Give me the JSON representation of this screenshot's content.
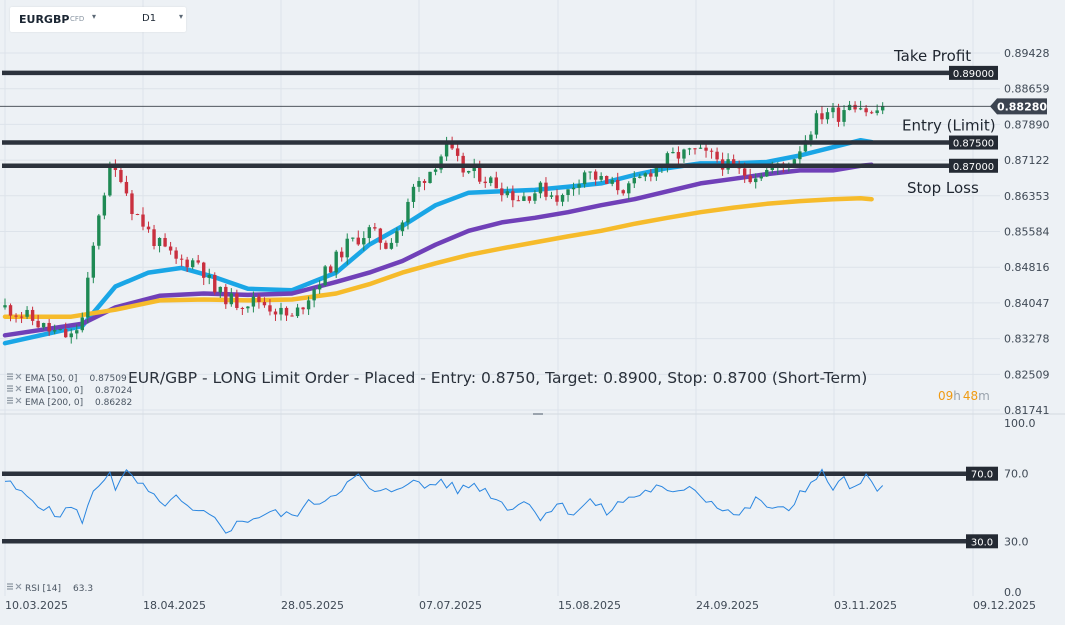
{
  "header": {
    "symbol": "EURGBP",
    "instrument_type": "CFD",
    "timeframe": "D1"
  },
  "title": "EUR/GBP - LONG Limit Order - Placed - Entry: 0.8750, Target: 0.8900, Stop: 0.8700 (Short-Term)",
  "countdown": {
    "hours": "09",
    "h_unit": "h",
    "minutes": "48",
    "m_unit": "m"
  },
  "colors": {
    "up": "#1f8a54",
    "down": "#c9303f",
    "ema50": "#1aa6e6",
    "ema100": "#7040b8",
    "ema200": "#f6bb2b",
    "rsi": "#2a86e0",
    "levels": "#2c323c"
  },
  "indicators": [
    {
      "label": "EMA [50, 0]",
      "value": "0.87509"
    },
    {
      "label": "EMA [100, 0]",
      "value": "0.87024"
    },
    {
      "label": "EMA [200, 0]",
      "value": "0.86282"
    }
  ],
  "rsi_legend": {
    "label": "RSI [14]",
    "value": "63.3"
  },
  "chart_data": [
    {
      "type": "candlestick",
      "title": "",
      "ylim": [
        0.81741,
        0.89428
      ],
      "y_ticks": [
        "0.89428",
        "0.88659",
        "0.87890",
        "0.87122",
        "0.86353",
        "0.85584",
        "0.84816",
        "0.84047",
        "0.83278",
        "0.82509",
        "0.81741"
      ],
      "x_ticks": [
        "10.03.2025",
        "18.04.2025",
        "28.05.2025",
        "07.07.2025",
        "15.08.2025",
        "24.09.2025",
        "03.11.2025",
        "09.12.2025"
      ],
      "current_price": "0.88280",
      "levels": [
        {
          "name": "Take Profit",
          "value": 0.89,
          "label": "0.89000"
        },
        {
          "name": "Entry (Limit)",
          "value": 0.875,
          "label": "0.87500"
        },
        {
          "name": "Stop Loss",
          "value": 0.87,
          "label": "0.87000"
        }
      ],
      "close_path": [
        [
          0,
          0.8395
        ],
        [
          4,
          0.8375
        ],
        [
          8,
          0.8345
        ],
        [
          12,
          0.833
        ],
        [
          14,
          0.837
        ],
        [
          17,
          0.86
        ],
        [
          19,
          0.869
        ],
        [
          21,
          0.868
        ],
        [
          23,
          0.861
        ],
        [
          27,
          0.854
        ],
        [
          31,
          0.8495
        ],
        [
          35,
          0.8495
        ],
        [
          38,
          0.843
        ],
        [
          42,
          0.8405
        ],
        [
          46,
          0.841
        ],
        [
          49,
          0.839
        ],
        [
          52,
          0.837
        ],
        [
          55,
          0.842
        ],
        [
          58,
          0.847
        ],
        [
          62,
          0.853
        ],
        [
          66,
          0.856
        ],
        [
          69,
          0.853
        ],
        [
          72,
          0.858
        ],
        [
          74,
          0.865
        ],
        [
          77,
          0.869
        ],
        [
          80,
          0.874
        ],
        [
          83,
          0.869
        ],
        [
          86,
          0.868
        ],
        [
          89,
          0.866
        ],
        [
          93,
          0.863
        ],
        [
          97,
          0.865
        ],
        [
          101,
          0.863
        ],
        [
          105,
          0.869
        ],
        [
          109,
          0.866
        ],
        [
          113,
          0.865
        ],
        [
          117,
          0.869
        ],
        [
          121,
          0.872
        ],
        [
          125,
          0.873
        ],
        [
          129,
          0.8715
        ],
        [
          132,
          0.869
        ],
        [
          135,
          0.868
        ],
        [
          138,
          0.869
        ],
        [
          141,
          0.87
        ],
        [
          143,
          0.872
        ],
        [
          145,
          0.876
        ],
        [
          147,
          0.88
        ],
        [
          149,
          0.882
        ],
        [
          151,
          0.881
        ],
        [
          153,
          0.884
        ],
        [
          155,
          0.883
        ],
        [
          157,
          0.881
        ],
        [
          159,
          0.8828
        ]
      ],
      "series": [
        {
          "name": "EMA [50, 0]",
          "points": [
            [
              0,
              0.8318
            ],
            [
              14,
              0.8355
            ],
            [
              20,
              0.844
            ],
            [
              26,
              0.847
            ],
            [
              32,
              0.848
            ],
            [
              38,
              0.846
            ],
            [
              44,
              0.8435
            ],
            [
              52,
              0.8432
            ],
            [
              60,
              0.847
            ],
            [
              66,
              0.853
            ],
            [
              72,
              0.857
            ],
            [
              78,
              0.8615
            ],
            [
              84,
              0.8642
            ],
            [
              90,
              0.8645
            ],
            [
              96,
              0.8648
            ],
            [
              102,
              0.8655
            ],
            [
              108,
              0.8662
            ],
            [
              114,
              0.868
            ],
            [
              120,
              0.8695
            ],
            [
              126,
              0.8705
            ],
            [
              132,
              0.8705
            ],
            [
              138,
              0.8708
            ],
            [
              144,
              0.8722
            ],
            [
              150,
              0.874
            ],
            [
              155,
              0.8755
            ],
            [
              157,
              0.8751
            ]
          ]
        },
        {
          "name": "EMA [100, 0]",
          "points": [
            [
              0,
              0.8335
            ],
            [
              14,
              0.836
            ],
            [
              20,
              0.8395
            ],
            [
              28,
              0.842
            ],
            [
              36,
              0.8425
            ],
            [
              44,
              0.8422
            ],
            [
              52,
              0.8425
            ],
            [
              60,
              0.845
            ],
            [
              66,
              0.847
            ],
            [
              72,
              0.8495
            ],
            [
              78,
              0.853
            ],
            [
              84,
              0.856
            ],
            [
              90,
              0.8578
            ],
            [
              96,
              0.8588
            ],
            [
              102,
              0.86
            ],
            [
              108,
              0.8615
            ],
            [
              114,
              0.8628
            ],
            [
              120,
              0.8645
            ],
            [
              126,
              0.8662
            ],
            [
              132,
              0.8672
            ],
            [
              138,
              0.8682
            ],
            [
              144,
              0.869
            ],
            [
              150,
              0.869
            ],
            [
              155,
              0.87
            ],
            [
              157,
              0.8702
            ]
          ]
        },
        {
          "name": "EMA [200, 0]",
          "points": [
            [
              0,
              0.8375
            ],
            [
              12,
              0.8375
            ],
            [
              20,
              0.839
            ],
            [
              28,
              0.841
            ],
            [
              36,
              0.8412
            ],
            [
              44,
              0.841
            ],
            [
              52,
              0.8412
            ],
            [
              60,
              0.8425
            ],
            [
              66,
              0.8445
            ],
            [
              72,
              0.847
            ],
            [
              78,
              0.849
            ],
            [
              84,
              0.8508
            ],
            [
              90,
              0.8522
            ],
            [
              96,
              0.8535
            ],
            [
              102,
              0.8548
            ],
            [
              108,
              0.856
            ],
            [
              114,
              0.8575
            ],
            [
              120,
              0.8588
            ],
            [
              126,
              0.86
            ],
            [
              132,
              0.861
            ],
            [
              138,
              0.8618
            ],
            [
              144,
              0.8624
            ],
            [
              150,
              0.8628
            ],
            [
              155,
              0.863
            ],
            [
              157,
              0.8628
            ]
          ]
        }
      ]
    },
    {
      "type": "line",
      "name": "RSI [14]",
      "ylim": [
        0,
        100
      ],
      "y_ticks": [
        "100.0",
        "70.0",
        "30.0",
        "0.0"
      ],
      "levels": [
        {
          "value": 70,
          "label": "70.0"
        },
        {
          "value": 30,
          "label": "30.0"
        }
      ],
      "points": [
        [
          0,
          66
        ],
        [
          3,
          58
        ],
        [
          6,
          53
        ],
        [
          9,
          45
        ],
        [
          12,
          50
        ],
        [
          14,
          43
        ],
        [
          16,
          58
        ],
        [
          18,
          68
        ],
        [
          19,
          72
        ],
        [
          20,
          62
        ],
        [
          22,
          70
        ],
        [
          25,
          62
        ],
        [
          28,
          52
        ],
        [
          31,
          55
        ],
        [
          34,
          47
        ],
        [
          37,
          45
        ],
        [
          40,
          37
        ],
        [
          44,
          43
        ],
        [
          48,
          47
        ],
        [
          52,
          45
        ],
        [
          55,
          52
        ],
        [
          58,
          55
        ],
        [
          61,
          62
        ],
        [
          64,
          68
        ],
        [
          67,
          58
        ],
        [
          70,
          60
        ],
        [
          73,
          66
        ],
        [
          76,
          62
        ],
        [
          79,
          66
        ],
        [
          82,
          60
        ],
        [
          85,
          64
        ],
        [
          88,
          58
        ],
        [
          91,
          50
        ],
        [
          94,
          54
        ],
        [
          97,
          45
        ],
        [
          100,
          52
        ],
        [
          103,
          47
        ],
        [
          106,
          54
        ],
        [
          109,
          47
        ],
        [
          112,
          54
        ],
        [
          115,
          58
        ],
        [
          118,
          62
        ],
        [
          121,
          57
        ],
        [
          124,
          64
        ],
        [
          127,
          55
        ],
        [
          130,
          50
        ],
        [
          133,
          45
        ],
        [
          136,
          54
        ],
        [
          139,
          50
        ],
        [
          142,
          47
        ],
        [
          144,
          60
        ],
        [
          146,
          64
        ],
        [
          148,
          70
        ],
        [
          150,
          62
        ],
        [
          152,
          66
        ],
        [
          154,
          60
        ],
        [
          156,
          68
        ],
        [
          158,
          58
        ],
        [
          159,
          63
        ]
      ]
    }
  ]
}
